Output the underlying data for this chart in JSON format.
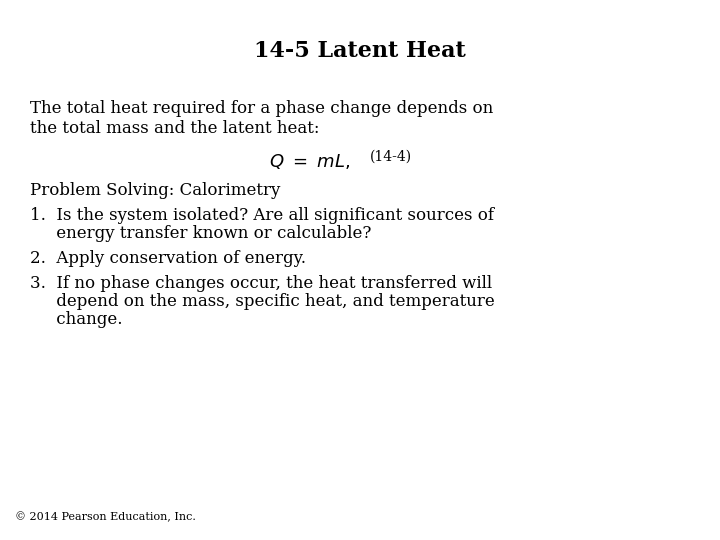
{
  "title": "14-5 Latent Heat",
  "background_color": "#ffffff",
  "text_color": "#000000",
  "title_fontsize": 16,
  "body_fontsize": 12,
  "eq_fontsize": 13,
  "eq_label_fontsize": 10,
  "small_fontsize": 8,
  "copyright": "© 2014 Pearson Education, Inc.",
  "paragraph1_line1": "The total heat required for a phase change depends on",
  "paragraph1_line2": "the total mass and the latent heat:",
  "equation_label": "(14-4)",
  "problem_solving_header": "Problem Solving: Calorimetry",
  "item1_line1": "1.  Is the system isolated? Are all significant sources of",
  "item1_line2": "     energy transfer known or calculable?",
  "item2": "2.  Apply conservation of energy.",
  "item3_line1": "3.  If no phase changes occur, the heat transferred will",
  "item3_line2": "     depend on the mass, specific heat, and temperature",
  "item3_line3": "     change."
}
